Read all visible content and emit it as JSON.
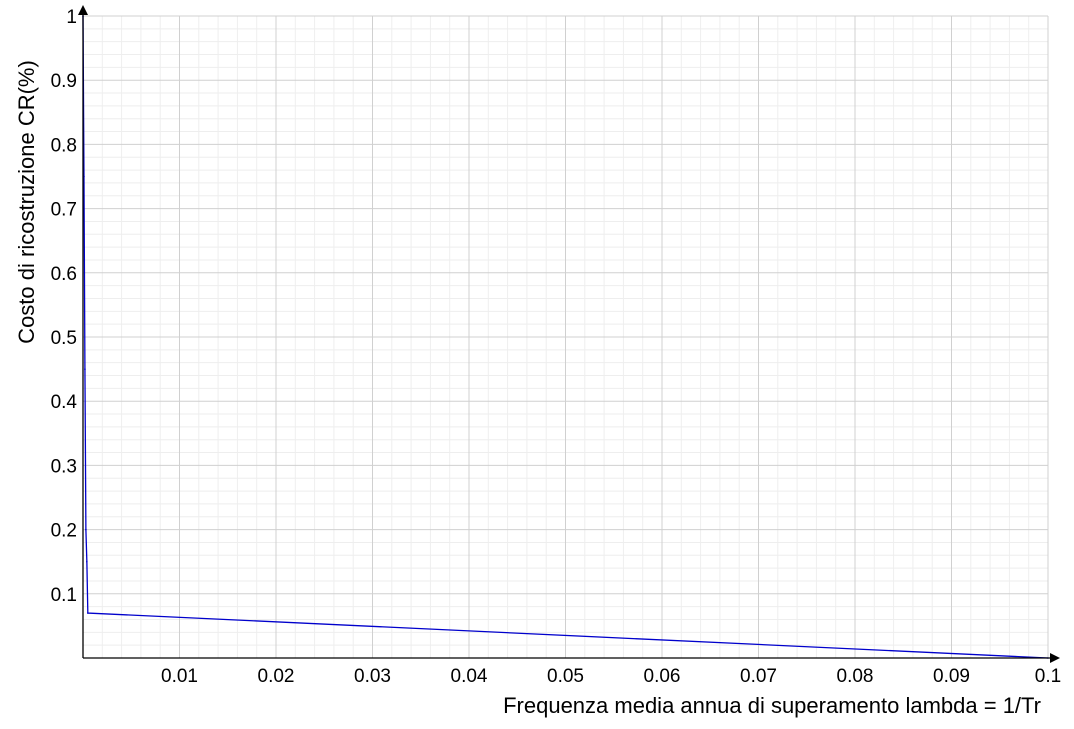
{
  "chart_data": {
    "type": "line",
    "title": "",
    "xlabel": "Frequenza media annua di superamento lambda = 1/Tr",
    "ylabel": "Costo di ricostruzione CR(%)",
    "xlim": [
      0,
      0.1
    ],
    "ylim": [
      0,
      1
    ],
    "x_ticks": [
      0.01,
      0.02,
      0.03,
      0.04,
      0.05,
      0.06,
      0.07,
      0.08,
      0.09,
      0.1
    ],
    "x_tick_labels": [
      "0.01",
      "0.02",
      "0.03",
      "0.04",
      "0.05",
      "0.06",
      "0.07",
      "0.08",
      "0.09",
      "0.1"
    ],
    "y_ticks": [
      0.1,
      0.2,
      0.3,
      0.4,
      0.5,
      0.6,
      0.7,
      0.8,
      0.9,
      1
    ],
    "y_tick_labels": [
      "0.1",
      "0.2",
      "0.3",
      "0.4",
      "0.5",
      "0.6",
      "0.7",
      "0.8",
      "0.9",
      "1"
    ],
    "grid": true,
    "minor_grid": true,
    "series": [
      {
        "color": "#0000cc",
        "points": [
          {
            "x": 0.0,
            "y": 1.0
          },
          {
            "x": 0.0001,
            "y": 0.75
          },
          {
            "x": 0.0002,
            "y": 0.45
          },
          {
            "x": 0.0003,
            "y": 0.2
          },
          {
            "x": 0.0004,
            "y": 0.15
          },
          {
            "x": 0.0005,
            "y": 0.07
          },
          {
            "x": 0.1,
            "y": 0.0
          }
        ]
      }
    ]
  }
}
